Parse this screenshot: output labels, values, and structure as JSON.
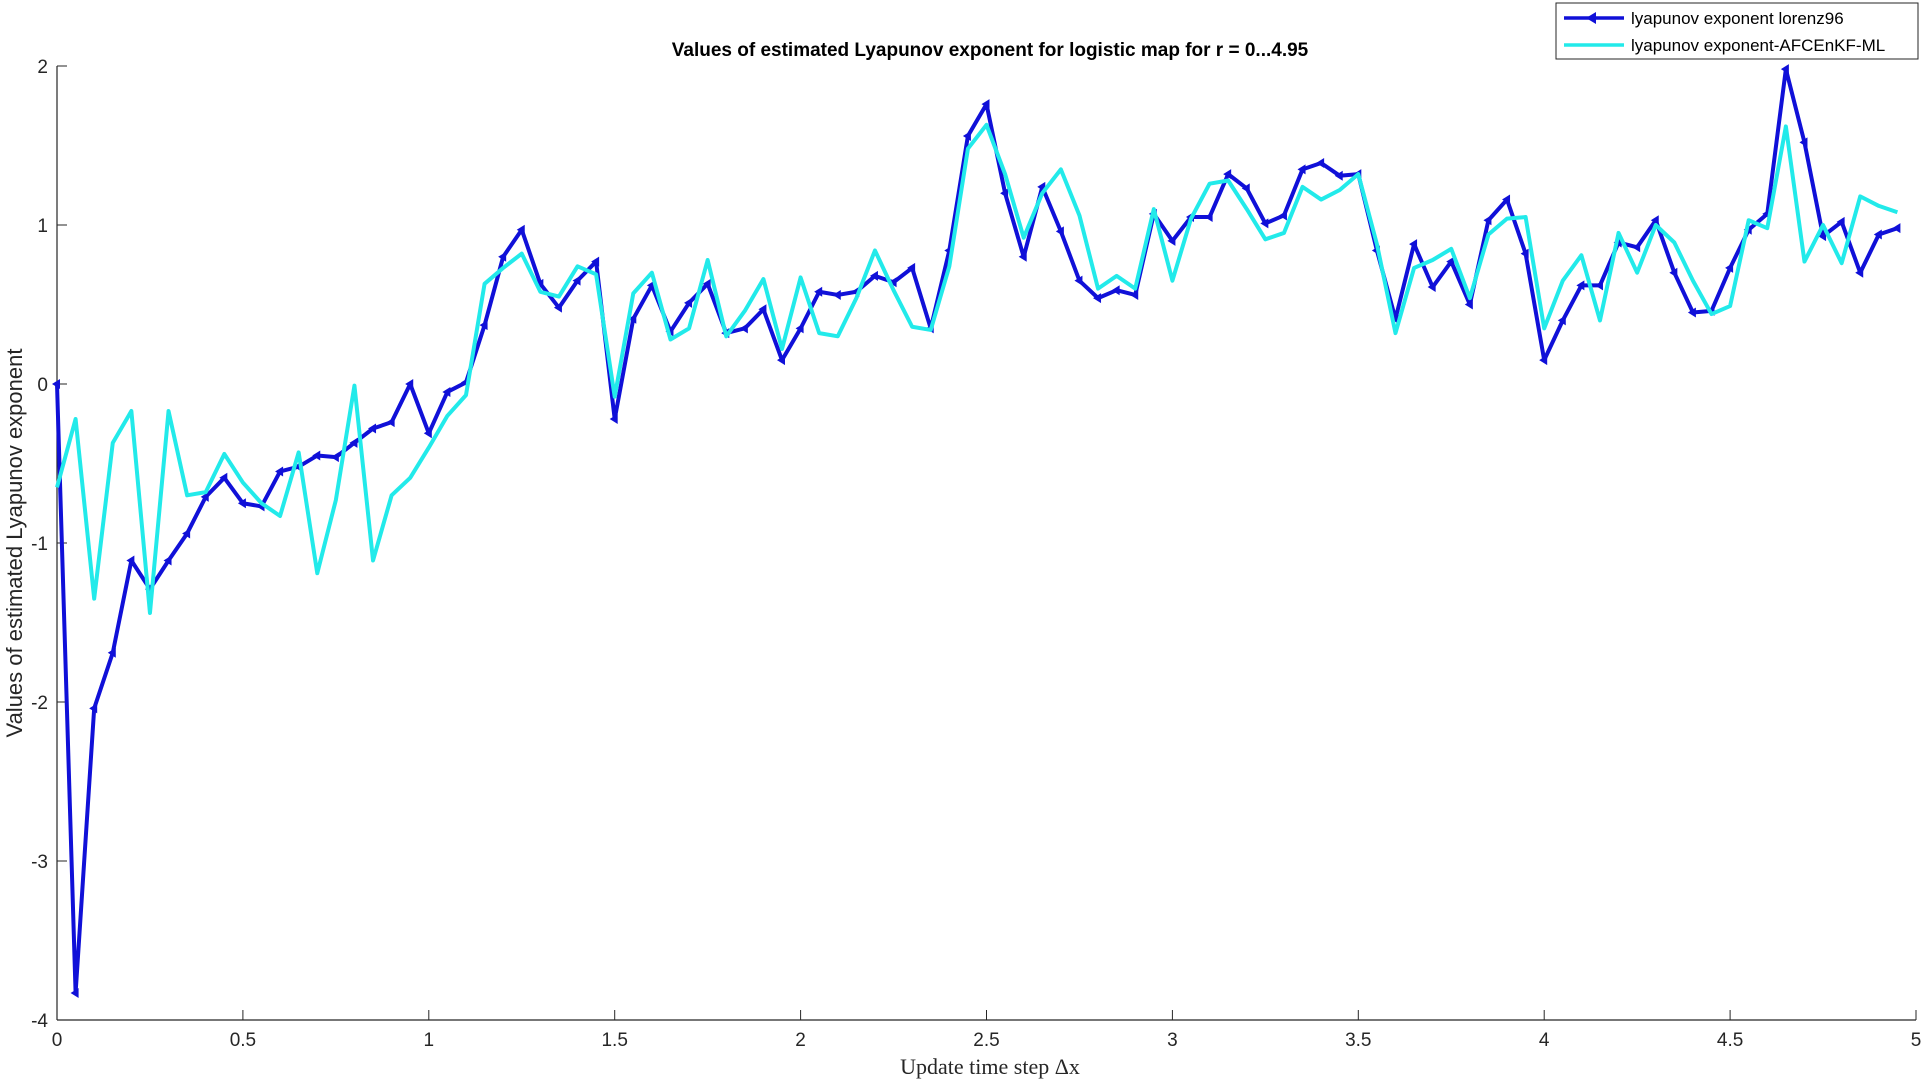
{
  "chart_data": {
    "type": "line",
    "title": "Values of estimated Lyapunov exponent for logistic map for r = 0...4.95",
    "xlabel": "Update time step Δx",
    "ylabel": "Values of estimated Lyapunov exponent",
    "xlim": [
      0,
      5
    ],
    "ylim": [
      -4,
      2
    ],
    "xticks": [
      0,
      0.5,
      1,
      1.5,
      2,
      2.5,
      3,
      3.5,
      4,
      4.5,
      5
    ],
    "yticks": [
      -4,
      -3,
      -2,
      -1,
      0,
      1,
      2
    ],
    "xtick_labels": [
      "0",
      "0.5",
      "1",
      "1.5",
      "2",
      "2.5",
      "3",
      "3.5",
      "4",
      "4.5",
      "5"
    ],
    "ytick_labels": [
      "-4",
      "-3",
      "-2",
      "-1",
      "0",
      "1",
      "2"
    ],
    "grid": false,
    "legend_position": "top-right",
    "x": [
      0,
      0.05,
      0.1,
      0.15,
      0.2,
      0.25,
      0.3,
      0.35,
      0.4,
      0.45,
      0.5,
      0.55,
      0.6,
      0.65,
      0.7,
      0.75,
      0.8,
      0.85,
      0.9,
      0.95,
      1,
      1.05,
      1.1,
      1.15,
      1.2,
      1.25,
      1.3,
      1.35,
      1.4,
      1.45,
      1.5,
      1.55,
      1.6,
      1.65,
      1.7,
      1.75,
      1.8,
      1.85,
      1.9,
      1.95,
      2,
      2.05,
      2.1,
      2.15,
      2.2,
      2.25,
      2.3,
      2.35,
      2.4,
      2.45,
      2.5,
      2.55,
      2.6,
      2.65,
      2.7,
      2.75,
      2.8,
      2.85,
      2.9,
      2.95,
      3,
      3.05,
      3.1,
      3.15,
      3.2,
      3.25,
      3.3,
      3.35,
      3.4,
      3.45,
      3.5,
      3.55,
      3.6,
      3.65,
      3.7,
      3.75,
      3.8,
      3.85,
      3.9,
      3.95,
      4,
      4.05,
      4.1,
      4.15,
      4.2,
      4.25,
      4.3,
      4.35,
      4.4,
      4.45,
      4.5,
      4.55,
      4.6,
      4.65,
      4.7,
      4.75,
      4.8,
      4.85,
      4.9,
      4.95
    ],
    "series": [
      {
        "name": "lyapunov exponent lorenz96",
        "color": "#1010d8",
        "marker": "left-triangle",
        "values": [
          0.0,
          -3.83,
          -2.04,
          -1.69,
          -1.11,
          -1.29,
          -1.11,
          -0.94,
          -0.71,
          -0.59,
          -0.75,
          -0.77,
          -0.55,
          -0.52,
          -0.45,
          -0.46,
          -0.37,
          -0.28,
          -0.24,
          0.0,
          -0.31,
          -0.05,
          0.01,
          0.37,
          0.8,
          0.97,
          0.63,
          0.48,
          0.65,
          0.77,
          -0.22,
          0.41,
          0.62,
          0.33,
          0.51,
          0.63,
          0.32,
          0.35,
          0.47,
          0.15,
          0.35,
          0.58,
          0.56,
          0.58,
          0.68,
          0.64,
          0.73,
          0.35,
          0.84,
          1.56,
          1.76,
          1.2,
          0.8,
          1.24,
          0.96,
          0.65,
          0.54,
          0.59,
          0.56,
          1.07,
          0.9,
          1.05,
          1.05,
          1.32,
          1.23,
          1.01,
          1.06,
          1.35,
          1.39,
          1.31,
          1.32,
          0.84,
          0.41,
          0.88,
          0.61,
          0.77,
          0.5,
          1.03,
          1.16,
          0.82,
          0.15,
          0.4,
          0.62,
          0.62,
          0.89,
          0.86,
          1.03,
          0.7,
          0.45,
          0.46,
          0.73,
          0.97,
          1.07,
          1.98,
          1.52,
          0.93,
          1.02,
          0.7,
          0.94,
          0.98
        ]
      },
      {
        "name": "lyapunov exponent-AFCEnKF-ML",
        "color": "#22eaea",
        "marker": "none",
        "values": [
          -0.65,
          -0.22,
          -1.35,
          -0.37,
          -0.17,
          -1.44,
          -0.17,
          -0.7,
          -0.68,
          -0.44,
          -0.62,
          -0.75,
          -0.83,
          -0.43,
          -1.19,
          -0.73,
          -0.01,
          -1.11,
          -0.7,
          -0.59,
          -0.4,
          -0.2,
          -0.07,
          0.63,
          0.73,
          0.82,
          0.58,
          0.55,
          0.74,
          0.69,
          -0.08,
          0.57,
          0.7,
          0.28,
          0.35,
          0.78,
          0.3,
          0.46,
          0.66,
          0.22,
          0.67,
          0.32,
          0.3,
          0.54,
          0.84,
          0.59,
          0.36,
          0.34,
          0.74,
          1.48,
          1.63,
          1.32,
          0.92,
          1.2,
          1.35,
          1.06,
          0.6,
          0.68,
          0.6,
          1.1,
          0.65,
          1.04,
          1.26,
          1.28,
          1.1,
          0.91,
          0.95,
          1.24,
          1.16,
          1.22,
          1.32,
          0.88,
          0.32,
          0.73,
          0.78,
          0.85,
          0.54,
          0.94,
          1.04,
          1.05,
          0.35,
          0.65,
          0.81,
          0.4,
          0.95,
          0.7,
          1.0,
          0.89,
          0.65,
          0.44,
          0.49,
          1.03,
          0.98,
          1.62,
          0.77,
          1.0,
          0.76,
          1.18,
          1.12,
          1.08
        ]
      }
    ]
  }
}
